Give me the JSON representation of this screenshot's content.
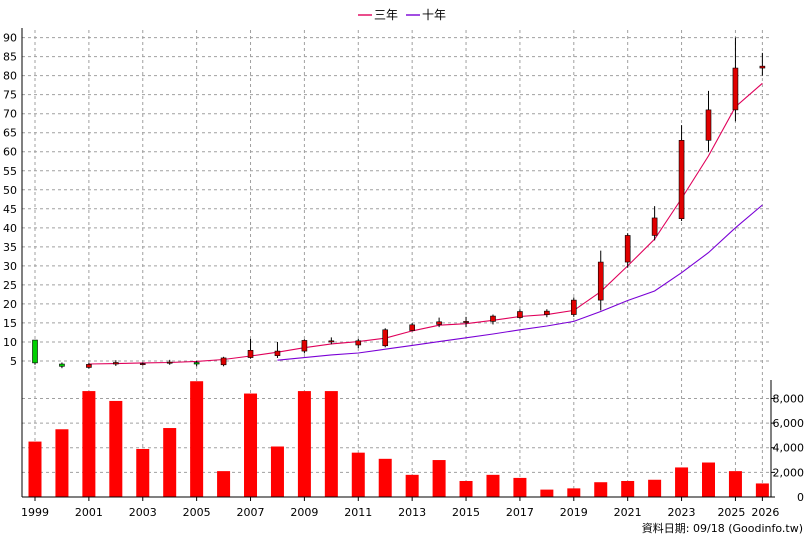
{
  "chart_data": {
    "type": "candlestick+bar",
    "legend": [
      {
        "label": "三年",
        "color": "#e0005a"
      },
      {
        "label": "十年",
        "color": "#7a00d6"
      }
    ],
    "source_label": "資料日期: 09/18  (Goodinfo.tw)",
    "price_axis": {
      "ylim": [
        0,
        92
      ],
      "ticks": [
        5,
        10,
        15,
        20,
        25,
        30,
        35,
        40,
        45,
        50,
        55,
        60,
        65,
        70,
        75,
        80,
        85,
        90
      ],
      "tick_labels": [
        "5",
        "10",
        "15",
        "20",
        "25",
        "30",
        "35",
        "40",
        "45",
        "50",
        "55",
        "60",
        "65",
        "70",
        "75",
        "80",
        "85",
        "90"
      ]
    },
    "volume_axis": {
      "ylim": [
        0,
        9500
      ],
      "ticks": [
        0,
        2000,
        4000,
        6000,
        8000
      ],
      "tick_labels": [
        "0",
        "2,000",
        "4,000",
        "6,000",
        "8,000"
      ]
    },
    "x_axis": {
      "years": [
        1999,
        2000,
        2001,
        2002,
        2003,
        2004,
        2005,
        2006,
        2007,
        2008,
        2009,
        2010,
        2011,
        2012,
        2013,
        2014,
        2015,
        2016,
        2017,
        2018,
        2019,
        2020,
        2021,
        2022,
        2023,
        2024,
        2025,
        2026
      ],
      "tick_labels": [
        "1999",
        "2001",
        "2003",
        "2005",
        "2007",
        "2009",
        "2011",
        "2013",
        "2015",
        "2017",
        "2019",
        "2021",
        "2023",
        "2025",
        "2026"
      ]
    },
    "candles": [
      {
        "year": 1999,
        "open": 10.5,
        "high": 10.5,
        "low": 4.0,
        "close": 4.5,
        "color": "green"
      },
      {
        "year": 2000,
        "open": 4.2,
        "high": 4.6,
        "low": 3.1,
        "close": 3.6,
        "color": "green"
      },
      {
        "year": 2001,
        "open": 3.3,
        "high": 4.5,
        "low": 3.0,
        "close": 4.1,
        "color": "red"
      },
      {
        "year": 2002,
        "open": 4.2,
        "high": 5.2,
        "low": 3.7,
        "close": 4.6,
        "color": "red"
      },
      {
        "year": 2003,
        "open": 4.2,
        "high": 4.6,
        "low": 3.8,
        "close": 4.3,
        "color": "red"
      },
      {
        "year": 2004,
        "open": 4.4,
        "high": 5.3,
        "low": 4.0,
        "close": 4.7,
        "color": "red"
      },
      {
        "year": 2005,
        "open": 4.6,
        "high": 5.0,
        "low": 3.6,
        "close": 4.2,
        "color": "green"
      },
      {
        "year": 2006,
        "open": 4.0,
        "high": 6.1,
        "low": 3.6,
        "close": 5.8,
        "color": "red"
      },
      {
        "year": 2007,
        "open": 5.9,
        "high": 10.8,
        "low": 5.6,
        "close": 7.8,
        "color": "red"
      },
      {
        "year": 2008,
        "open": 6.4,
        "high": 10.0,
        "low": 5.8,
        "close": 7.6,
        "color": "red"
      },
      {
        "year": 2009,
        "open": 7.6,
        "high": 10.7,
        "low": 7.0,
        "close": 10.4,
        "color": "red"
      },
      {
        "year": 2010,
        "open": 10.0,
        "high": 11.2,
        "low": 9.4,
        "close": 10.3,
        "color": "red"
      },
      {
        "year": 2011,
        "open": 9.2,
        "high": 10.8,
        "low": 8.4,
        "close": 10.3,
        "color": "red"
      },
      {
        "year": 2012,
        "open": 9.0,
        "high": 13.6,
        "low": 8.6,
        "close": 13.2,
        "color": "red"
      },
      {
        "year": 2013,
        "open": 13.0,
        "high": 15.0,
        "low": 12.8,
        "close": 14.5,
        "color": "red"
      },
      {
        "year": 2014,
        "open": 14.6,
        "high": 16.4,
        "low": 13.9,
        "close": 15.3,
        "color": "red"
      },
      {
        "year": 2015,
        "open": 15.1,
        "high": 16.6,
        "low": 13.9,
        "close": 15.4,
        "color": "red"
      },
      {
        "year": 2016,
        "open": 15.4,
        "high": 17.2,
        "low": 14.6,
        "close": 16.8,
        "color": "red"
      },
      {
        "year": 2017,
        "open": 16.4,
        "high": 18.6,
        "low": 16.1,
        "close": 18.0,
        "color": "red"
      },
      {
        "year": 2018,
        "open": 17.2,
        "high": 18.6,
        "low": 16.5,
        "close": 18.1,
        "color": "red"
      },
      {
        "year": 2019,
        "open": 17.2,
        "high": 21.7,
        "low": 16.6,
        "close": 21.0,
        "color": "red"
      },
      {
        "year": 2020,
        "open": 21.0,
        "high": 34.0,
        "low": 18.3,
        "close": 31.0,
        "color": "red"
      },
      {
        "year": 2021,
        "open": 31.0,
        "high": 38.6,
        "low": 29.5,
        "close": 38.0,
        "color": "red"
      },
      {
        "year": 2022,
        "open": 38.0,
        "high": 45.7,
        "low": 36.7,
        "close": 42.6,
        "color": "red"
      },
      {
        "year": 2023,
        "open": 42.4,
        "high": 67.0,
        "low": 41.8,
        "close": 63.0,
        "color": "red"
      },
      {
        "year": 2024,
        "open": 63.0,
        "high": 76.0,
        "low": 60.0,
        "close": 71.0,
        "color": "red"
      },
      {
        "year": 2025,
        "open": 71.0,
        "high": 90.0,
        "low": 68.0,
        "close": 82.0,
        "color": "red"
      },
      {
        "year": 2026,
        "open": 82.0,
        "high": 86.0,
        "low": 80.0,
        "close": 82.5,
        "color": "red"
      }
    ],
    "ma_series": [
      {
        "name": "三年",
        "color": "#e0005a",
        "points": [
          [
            2001,
            4.2
          ],
          [
            2002,
            4.3
          ],
          [
            2003,
            4.5
          ],
          [
            2004,
            4.6
          ],
          [
            2005,
            4.9
          ],
          [
            2006,
            5.4
          ],
          [
            2007,
            6.3
          ],
          [
            2008,
            7.3
          ],
          [
            2009,
            8.5
          ],
          [
            2010,
            9.5
          ],
          [
            2011,
            10.1
          ],
          [
            2012,
            11.0
          ],
          [
            2013,
            12.9
          ],
          [
            2014,
            14.4
          ],
          [
            2015,
            14.8
          ],
          [
            2016,
            15.7
          ],
          [
            2017,
            16.7
          ],
          [
            2018,
            17.2
          ],
          [
            2019,
            18.3
          ],
          [
            2020,
            23.2
          ],
          [
            2021,
            30.0
          ],
          [
            2022,
            37.0
          ],
          [
            2023,
            47.7
          ],
          [
            2024,
            58.9
          ],
          [
            2025,
            71.8
          ],
          [
            2026,
            78.0
          ]
        ]
      },
      {
        "name": "十年",
        "color": "#7a00d6",
        "points": [
          [
            2008,
            5.2
          ],
          [
            2009,
            5.9
          ],
          [
            2010,
            6.6
          ],
          [
            2011,
            7.1
          ],
          [
            2012,
            8.1
          ],
          [
            2013,
            9.1
          ],
          [
            2014,
            10.1
          ],
          [
            2015,
            11.1
          ],
          [
            2016,
            12.1
          ],
          [
            2017,
            13.2
          ],
          [
            2018,
            14.2
          ],
          [
            2019,
            15.4
          ],
          [
            2020,
            18.0
          ],
          [
            2021,
            20.9
          ],
          [
            2022,
            23.4
          ],
          [
            2023,
            28.2
          ],
          [
            2024,
            33.5
          ],
          [
            2025,
            40.0
          ],
          [
            2026,
            46.0
          ]
        ]
      }
    ],
    "volume": [
      {
        "year": 1999,
        "value": 4500
      },
      {
        "year": 2000,
        "value": 5500
      },
      {
        "year": 2001,
        "value": 8600
      },
      {
        "year": 2002,
        "value": 7800
      },
      {
        "year": 2003,
        "value": 3900
      },
      {
        "year": 2004,
        "value": 5600
      },
      {
        "year": 2005,
        "value": 9400
      },
      {
        "year": 2006,
        "value": 2100
      },
      {
        "year": 2007,
        "value": 8400
      },
      {
        "year": 2008,
        "value": 4100
      },
      {
        "year": 2009,
        "value": 8600
      },
      {
        "year": 2010,
        "value": 8600
      },
      {
        "year": 2011,
        "value": 3600
      },
      {
        "year": 2012,
        "value": 3100
      },
      {
        "year": 2013,
        "value": 1800
      },
      {
        "year": 2014,
        "value": 3000
      },
      {
        "year": 2015,
        "value": 1300
      },
      {
        "year": 2016,
        "value": 1800
      },
      {
        "year": 2017,
        "value": 1550
      },
      {
        "year": 2018,
        "value": 600
      },
      {
        "year": 2019,
        "value": 700
      },
      {
        "year": 2020,
        "value": 1200
      },
      {
        "year": 2021,
        "value": 1300
      },
      {
        "year": 2022,
        "value": 1400
      },
      {
        "year": 2023,
        "value": 2400
      },
      {
        "year": 2024,
        "value": 2800
      },
      {
        "year": 2025,
        "value": 2100
      },
      {
        "year": 2026,
        "value": 1100
      }
    ],
    "colors": {
      "up_candle": "#e00000",
      "down_candle": "#00d000",
      "volume_bar": "#ff0000",
      "grid": "#a0a0a0",
      "axis": "#000000"
    },
    "grid": true
  }
}
